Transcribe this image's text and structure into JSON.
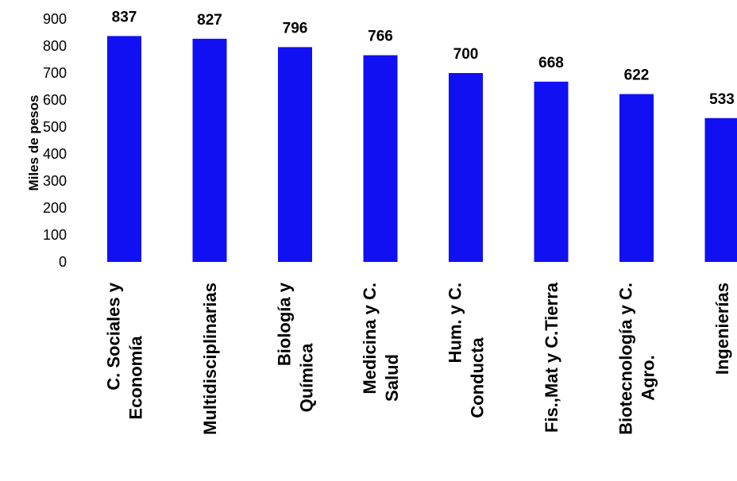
{
  "colors": {
    "bar": "#1010f2",
    "text": "#000000"
  },
  "chart_data": {
    "type": "bar",
    "title": "",
    "xlabel": "",
    "ylabel": "Miles de pesos",
    "ylim": [
      0,
      900
    ],
    "yticks": [
      "0",
      "100",
      "200",
      "300",
      "400",
      "500",
      "600",
      "700",
      "800",
      "900"
    ],
    "grid": false,
    "categories": [
      [
        "C. Sociales y",
        "Economía"
      ],
      [
        "Multidisciplinarias"
      ],
      [
        "Biología y",
        "Química"
      ],
      [
        "Medicina y C.",
        "Salud"
      ],
      [
        "Hum. y C.",
        "Conducta"
      ],
      [
        "Fis.,Mat y C.Tierra"
      ],
      [
        "Biotecnología y C.",
        "Agro."
      ],
      [
        "Ingenierías"
      ]
    ],
    "values": [
      837,
      827,
      796,
      766,
      700,
      668,
      622,
      533
    ],
    "value_labels": [
      "837",
      "827",
      "796",
      "766",
      "700",
      "668",
      "622",
      "533"
    ]
  }
}
